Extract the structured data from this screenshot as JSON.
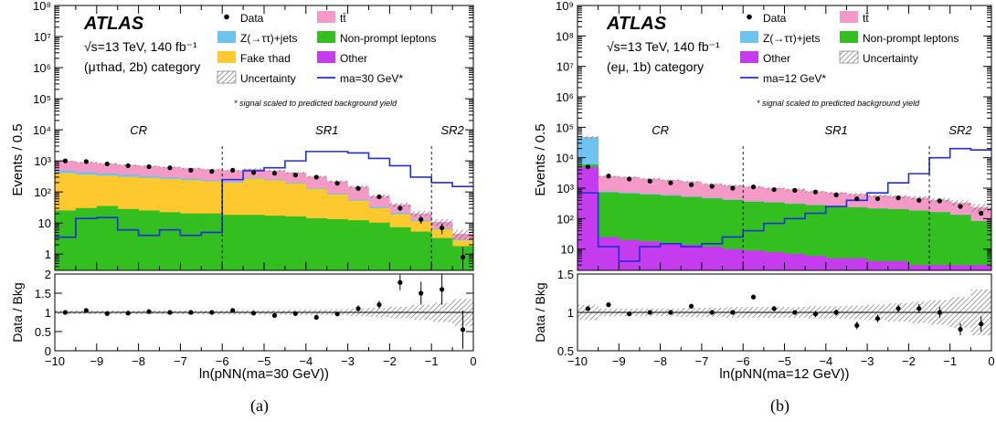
{
  "chart_data": [
    {
      "type": "histogram",
      "panel_caption": "(a)",
      "experiment": "ATLAS",
      "energy_line": "√s=13 TeV, 140 fb⁻¹",
      "category_line": "(μτhad, 2b) category",
      "signal_note": "* signal scaled to predicted background yield",
      "ylabel": "Events / 0.5",
      "xlabel": "ln(pNN(ma=30 GeV))",
      "ratio_ylabel": "Data / Bkg",
      "xlim": [
        -10,
        0
      ],
      "ylim_log": [
        0.3,
        100000000
      ],
      "ratio_ylim": [
        0,
        2
      ],
      "x_ticks": [
        "−10",
        "−9",
        "−8",
        "−7",
        "−6",
        "−5",
        "−4",
        "−3",
        "−2",
        "−1",
        "0"
      ],
      "y_ticks": [
        "1",
        "10",
        "10²",
        "10³",
        "10⁴",
        "10⁵",
        "10⁶",
        "10⁷",
        "10⁸"
      ],
      "ratio_ticks": [
        "0",
        "0.5",
        "1",
        "1.5",
        "2"
      ],
      "regions": [
        {
          "label": "CR",
          "x_from": -10,
          "x_to": -6
        },
        {
          "label": "SR1",
          "x_from": -6,
          "x_to": -1
        },
        {
          "label": "SR2",
          "x_from": -1,
          "x_to": 0
        }
      ],
      "region_boundaries": [
        -6,
        -1
      ],
      "bin_edges": [
        -10,
        -9.5,
        -9,
        -8.5,
        -8,
        -7.5,
        -7,
        -6.5,
        -6,
        -5.5,
        -5,
        -4.5,
        -4,
        -3.5,
        -3,
        -2.5,
        -2,
        -1.5,
        -1,
        -0.5,
        0
      ],
      "legend": [
        {
          "label": "Data",
          "kind": "marker"
        },
        {
          "label": "tt̄",
          "kind": "box",
          "color": "#f39ac6"
        },
        {
          "label": "Z(→ττ)+jets",
          "kind": "box",
          "color": "#6fc3f0"
        },
        {
          "label": "Non-prompt leptons",
          "kind": "box",
          "color": "#33bf1f"
        },
        {
          "label": "Fake τhad",
          "kind": "box",
          "color": "#fdc92e"
        },
        {
          "label": "Other",
          "kind": "box",
          "color": "#c53cef"
        },
        {
          "label": "Uncertainty",
          "kind": "hatch"
        },
        {
          "label": "ma=30 GeV*",
          "kind": "line",
          "color": "#1f2fd8"
        }
      ],
      "stack": [
        {
          "name": "Other",
          "color": "#c53cef",
          "values": [
            0.3,
            0.3,
            0.3,
            0.3,
            0.3,
            0.3,
            0.3,
            0.3,
            0.3,
            0.3,
            0.3,
            0.3,
            0.3,
            0.3,
            0.3,
            0.3,
            0.3,
            0.3,
            0.3,
            0.3
          ]
        },
        {
          "name": "Non-prompt leptons",
          "color": "#33bf1f",
          "values": [
            25,
            30,
            35,
            28,
            25,
            22,
            20,
            20,
            18,
            18,
            17,
            16,
            14,
            13,
            12,
            10,
            7,
            5,
            3,
            1.5
          ]
        },
        {
          "name": "Fake τhad",
          "color": "#fdc92e",
          "values": [
            380,
            330,
            300,
            280,
            260,
            240,
            220,
            200,
            180,
            250,
            220,
            170,
            110,
            70,
            40,
            20,
            12,
            6,
            3,
            1
          ]
        },
        {
          "name": "Z(→ττ)+jets",
          "color": "#6fc3f0",
          "values": [
            80,
            70,
            60,
            50,
            40,
            30,
            25,
            18,
            15,
            15,
            12,
            10,
            8,
            6,
            4,
            3,
            2,
            1,
            0.5,
            0.2
          ]
        },
        {
          "name": "tt̄",
          "color": "#f39ac6",
          "values": [
            500,
            470,
            420,
            380,
            360,
            340,
            310,
            290,
            280,
            260,
            240,
            220,
            180,
            130,
            90,
            40,
            18,
            8,
            4,
            1.5
          ]
        }
      ],
      "uncertainty_rel": [
        0.05,
        0.05,
        0.05,
        0.05,
        0.05,
        0.05,
        0.05,
        0.05,
        0.06,
        0.06,
        0.06,
        0.07,
        0.07,
        0.08,
        0.1,
        0.12,
        0.15,
        0.2,
        0.25,
        0.35
      ],
      "data": {
        "x": [
          -9.75,
          -9.25,
          -8.75,
          -8.25,
          -7.75,
          -7.25,
          -6.75,
          -6.25,
          -5.75,
          -5.25,
          -4.75,
          -4.25,
          -3.75,
          -3.25,
          -2.75,
          -2.25,
          -1.75,
          -1.25,
          -0.75,
          -0.25
        ],
        "y": [
          1000,
          950,
          800,
          700,
          650,
          600,
          500,
          460,
          500,
          420,
          400,
          350,
          300,
          190,
          130,
          70,
          30,
          13,
          7,
          0.8
        ]
      },
      "signal": {
        "name": "ma=30 GeV*",
        "color": "#1f2fd8",
        "values": [
          3.5,
          14,
          15,
          6,
          4,
          6,
          4,
          5,
          250,
          480,
          600,
          1000,
          2000,
          2000,
          1800,
          1200,
          700,
          300,
          200,
          150
        ]
      },
      "ratio": {
        "y": [
          1.0,
          1.05,
          0.97,
          0.98,
          1.02,
          1.0,
          1.0,
          1.0,
          1.05,
          0.98,
          0.92,
          0.97,
          0.87,
          0.96,
          1.1,
          1.2,
          1.78,
          1.5,
          1.6,
          0.55
        ],
        "err": [
          0.03,
          0.03,
          0.03,
          0.03,
          0.03,
          0.03,
          0.03,
          0.04,
          0.04,
          0.04,
          0.04,
          0.05,
          0.05,
          0.06,
          0.08,
          0.1,
          0.2,
          0.3,
          0.4,
          0.5
        ]
      }
    },
    {
      "type": "histogram",
      "panel_caption": "(b)",
      "experiment": "ATLAS",
      "energy_line": "√s=13 TeV, 140 fb⁻¹",
      "category_line": "(eμ, 1b) category",
      "signal_note": "* signal scaled to predicted background yield",
      "ylabel": "Events / 0.5",
      "xlabel": "ln(pNN(ma=12 GeV))",
      "ratio_ylabel": "Data / Bkg",
      "xlim": [
        -10,
        0
      ],
      "ylim_log": [
        2,
        1000000000
      ],
      "ratio_ylim": [
        0.5,
        1.5
      ],
      "x_ticks": [
        "−10",
        "−9",
        "−8",
        "−7",
        "−6",
        "−5",
        "−4",
        "−3",
        "−2",
        "−1",
        "0"
      ],
      "y_ticks": [
        "10",
        "10²",
        "10³",
        "10⁴",
        "10⁵",
        "10⁶",
        "10⁷",
        "10⁸",
        "10⁹"
      ],
      "ratio_ticks": [
        "0.5",
        "1",
        "1.5"
      ],
      "regions": [
        {
          "label": "CR",
          "x_from": -10,
          "x_to": -6
        },
        {
          "label": "SR1",
          "x_from": -6,
          "x_to": -1.5
        },
        {
          "label": "SR2",
          "x_from": -1.5,
          "x_to": 0
        }
      ],
      "region_boundaries": [
        -6,
        -1.5
      ],
      "bin_edges": [
        -10,
        -9.5,
        -9,
        -8.5,
        -8,
        -7.5,
        -7,
        -6.5,
        -6,
        -5.5,
        -5,
        -4.5,
        -4,
        -3.5,
        -3,
        -2.5,
        -2,
        -1.5,
        -1,
        -0.5,
        0
      ],
      "legend": [
        {
          "label": "Data",
          "kind": "marker"
        },
        {
          "label": "tt̄",
          "kind": "box",
          "color": "#f39ac6"
        },
        {
          "label": "Z(→ττ)+jets",
          "kind": "box",
          "color": "#6fc3f0"
        },
        {
          "label": "Non-prompt leptons",
          "kind": "box",
          "color": "#33bf1f"
        },
        {
          "label": "Other",
          "kind": "box",
          "color": "#c53cef"
        },
        {
          "label": "Uncertainty",
          "kind": "hatch"
        },
        {
          "label": "ma=12 GeV*",
          "kind": "line",
          "color": "#1f2fd8"
        }
      ],
      "stack": [
        {
          "name": "Other",
          "color": "#c53cef",
          "values": [
            5000,
            25,
            20,
            18,
            16,
            14,
            12,
            10,
            9,
            8,
            7,
            6,
            5,
            5,
            4,
            4,
            3,
            3,
            3,
            3
          ]
        },
        {
          "name": "Non-prompt leptons",
          "color": "#33bf1f",
          "values": [
            1000,
            700,
            650,
            600,
            550,
            500,
            450,
            400,
            350,
            330,
            300,
            270,
            250,
            230,
            210,
            200,
            180,
            160,
            130,
            80
          ]
        },
        {
          "name": "Z(→ττ)+jets",
          "color": "#6fc3f0",
          "values": [
            40000,
            50,
            40,
            30,
            25,
            20,
            15,
            12,
            10,
            8,
            6,
            5,
            4,
            3,
            3,
            2,
            2,
            2,
            1,
            1
          ]
        },
        {
          "name": "tt̄",
          "color": "#f39ac6",
          "values": [
            1500,
            1700,
            1600,
            1400,
            1250,
            1100,
            900,
            800,
            750,
            650,
            600,
            500,
            450,
            400,
            350,
            330,
            300,
            250,
            200,
            150
          ]
        }
      ],
      "uncertainty_rel": [
        0.1,
        0.05,
        0.05,
        0.05,
        0.05,
        0.06,
        0.06,
        0.07,
        0.07,
        0.07,
        0.07,
        0.08,
        0.08,
        0.09,
        0.1,
        0.12,
        0.14,
        0.16,
        0.2,
        0.3
      ],
      "data": {
        "x": [
          -9.75,
          -9.25,
          -8.75,
          -8.25,
          -7.75,
          -7.25,
          -6.75,
          -6.25,
          -5.75,
          -5.25,
          -4.75,
          -4.25,
          -3.75,
          -3.25,
          -2.75,
          -2.25,
          -1.75,
          -1.25,
          -0.75,
          -0.25
        ],
        "y": [
          5000,
          2500,
          2000,
          1700,
          1500,
          1300,
          1150,
          1000,
          1100,
          900,
          850,
          750,
          600,
          450,
          450,
          480,
          400,
          380,
          250,
          150
        ]
      },
      "signal": {
        "name": "ma=12 GeV*",
        "color": "#1f2fd8",
        "values": [
          700,
          12,
          4,
          12,
          15,
          12,
          15,
          25,
          40,
          70,
          100,
          150,
          250,
          400,
          700,
          1500,
          3000,
          10000,
          20000,
          18000
        ]
      },
      "ratio": {
        "y": [
          1.05,
          1.1,
          0.98,
          1.0,
          1.0,
          1.08,
          1.0,
          1.0,
          1.2,
          1.05,
          1.0,
          0.98,
          1.0,
          0.83,
          0.92,
          1.05,
          1.05,
          1.0,
          0.78,
          0.85
        ],
        "err": [
          0.02,
          0.02,
          0.02,
          0.02,
          0.02,
          0.02,
          0.03,
          0.03,
          0.03,
          0.03,
          0.03,
          0.04,
          0.04,
          0.05,
          0.05,
          0.05,
          0.06,
          0.07,
          0.08,
          0.1
        ]
      }
    }
  ]
}
